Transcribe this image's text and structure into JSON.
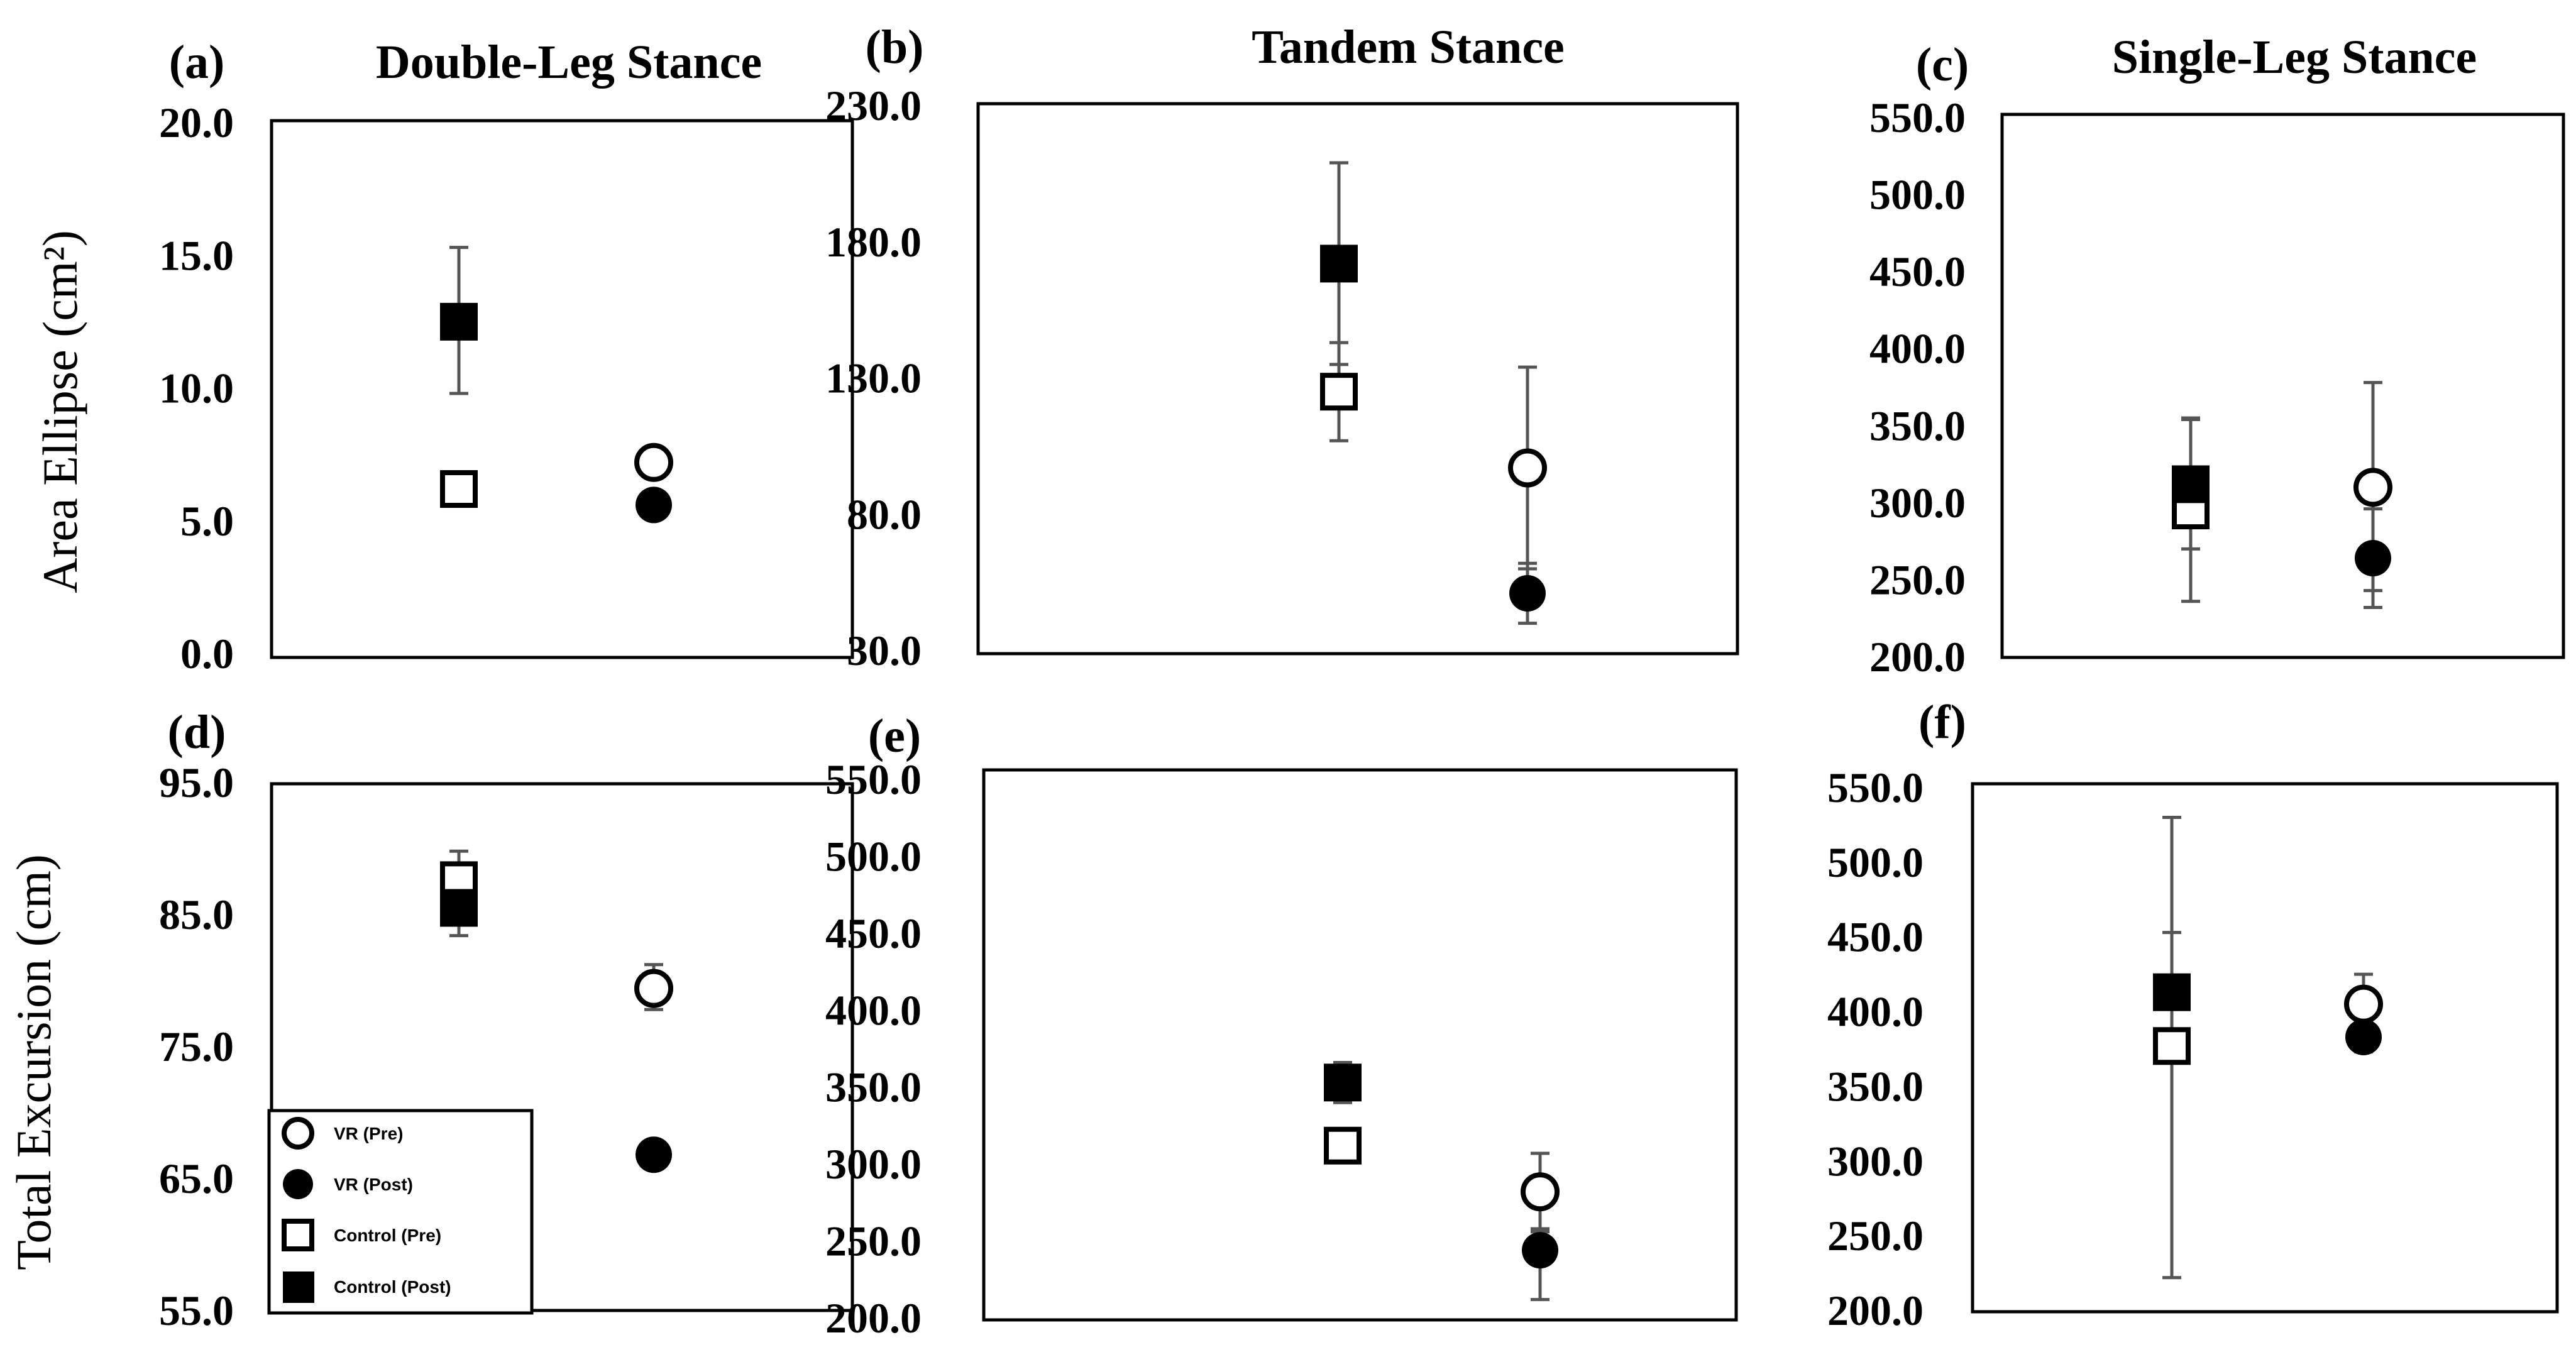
{
  "figure": {
    "ylabel_top": "Area Ellipse (cm²)",
    "ylabel_bottom": "Total Excursion (cm)"
  },
  "legend": {
    "items": [
      {
        "key": "vr_pre",
        "label": "VR (Pre)"
      },
      {
        "key": "vr_post",
        "label": "VR (Post)"
      },
      {
        "key": "control_pre",
        "label": "Control (Pre)"
      },
      {
        "key": "control_post",
        "label": "Control (Post)"
      }
    ]
  },
  "chart_data": [
    {
      "panel": "(a)",
      "title": "Double-Leg Stance",
      "type": "scatter",
      "ylabel": "Area Ellipse (cm²)",
      "ylim": [
        0,
        20
      ],
      "yticks": [
        "0.0",
        "5.0",
        "10.0",
        "15.0",
        "20.0"
      ],
      "groups": [
        "Control",
        "VR"
      ],
      "series": [
        {
          "key": "control_pre",
          "name": "Control (Pre)",
          "group": "Control",
          "y": 6.2,
          "err_low": 5.6,
          "err_high": 6.6
        },
        {
          "key": "control_post",
          "name": "Control (Post)",
          "group": "Control",
          "y": 12.5,
          "err_low": 9.8,
          "err_high": 15.3
        },
        {
          "key": "vr_pre",
          "name": "VR (Pre)",
          "group": "VR",
          "y": 7.2,
          "err_low": 6.8,
          "err_high": 7.6
        },
        {
          "key": "vr_post",
          "name": "VR (Post)",
          "group": "VR",
          "y": 5.6,
          "err_low": 5.3,
          "err_high": 5.9
        }
      ]
    },
    {
      "panel": "(b)",
      "title": "Tandem Stance",
      "type": "scatter",
      "ylabel": "",
      "ylim": [
        30,
        230
      ],
      "yticks": [
        "30.0",
        "80.0",
        "130.0",
        "180.0",
        "230.0"
      ],
      "groups": [
        "Control",
        "VR"
      ],
      "series": [
        {
          "key": "control_pre",
          "name": "Control (Pre)",
          "group": "Control",
          "y": 125,
          "err_low": 107,
          "err_high": 143
        },
        {
          "key": "control_post",
          "name": "Control (Post)",
          "group": "Control",
          "y": 172,
          "err_low": 135,
          "err_high": 209
        },
        {
          "key": "vr_pre",
          "name": "VR (Pre)",
          "group": "VR",
          "y": 97,
          "err_low": 60,
          "err_high": 134
        },
        {
          "key": "vr_post",
          "name": "VR (Post)",
          "group": "VR",
          "y": 51,
          "err_low": 40,
          "err_high": 62
        }
      ]
    },
    {
      "panel": "(c)",
      "title": "Single-Leg Stance",
      "type": "scatter",
      "ylabel": "",
      "ylim": [
        200,
        550
      ],
      "yticks": [
        "200.0",
        "250.0",
        "300.0",
        "350.0",
        "400.0",
        "450.0",
        "500.0",
        "550.0"
      ],
      "groups": [
        "Control",
        "VR"
      ],
      "series": [
        {
          "key": "control_pre",
          "name": "Control (Pre)",
          "group": "Control",
          "y": 295,
          "err_low": 236,
          "err_high": 354
        },
        {
          "key": "control_post",
          "name": "Control (Post)",
          "group": "Control",
          "y": 312,
          "err_low": 270,
          "err_high": 355
        },
        {
          "key": "vr_pre",
          "name": "VR (Pre)",
          "group": "VR",
          "y": 310,
          "err_low": 243,
          "err_high": 378
        },
        {
          "key": "vr_post",
          "name": "VR (Post)",
          "group": "VR",
          "y": 264,
          "err_low": 232,
          "err_high": 296
        }
      ]
    },
    {
      "panel": "(d)",
      "title": "",
      "type": "scatter",
      "ylabel": "Total Excursion (cm)",
      "ylim": [
        55,
        95
      ],
      "yticks": [
        "55.0",
        "65.0",
        "75.0",
        "85.0",
        "95.0"
      ],
      "groups": [
        "Control",
        "VR"
      ],
      "series": [
        {
          "key": "control_pre",
          "name": "Control (Pre)",
          "group": "Control",
          "y": 87.6,
          "err_low": 85.5,
          "err_high": 89.8
        },
        {
          "key": "control_post",
          "name": "Control (Post)",
          "group": "Control",
          "y": 85.5,
          "err_low": 83.4,
          "err_high": 87.6
        },
        {
          "key": "vr_pre",
          "name": "VR (Pre)",
          "group": "VR",
          "y": 79.4,
          "err_low": 77.8,
          "err_high": 81.2
        },
        {
          "key": "vr_post",
          "name": "VR (Post)",
          "group": "VR",
          "y": 66.8,
          "err_low": 66.3,
          "err_high": 67.3
        }
      ]
    },
    {
      "panel": "(e)",
      "title": "",
      "type": "scatter",
      "ylabel": "",
      "ylim": [
        200,
        550
      ],
      "yticks": [
        "200.0",
        "250.0",
        "300.0",
        "350.0",
        "400.0",
        "450.0",
        "500.0",
        "550.0"
      ],
      "groups": [
        "Control",
        "VR"
      ],
      "series": [
        {
          "key": "control_pre",
          "name": "Control (Pre)",
          "group": "Control",
          "y": 312,
          "err_low": 302,
          "err_high": 322
        },
        {
          "key": "control_post",
          "name": "Control (Post)",
          "group": "Control",
          "y": 353,
          "err_low": 340,
          "err_high": 366
        },
        {
          "key": "vr_pre",
          "name": "VR (Pre)",
          "group": "VR",
          "y": 282,
          "err_low": 258,
          "err_high": 307
        },
        {
          "key": "vr_post",
          "name": "VR (Post)",
          "group": "VR",
          "y": 244,
          "err_low": 212,
          "err_high": 256
        }
      ]
    },
    {
      "panel": "(f)",
      "title": "",
      "type": "scatter",
      "ylabel": "",
      "ylim": [
        200,
        550
      ],
      "yticks": [
        "200.0",
        "250.0",
        "300.0",
        "350.0",
        "400.0",
        "450.0",
        "500.0",
        "550.0"
      ],
      "groups": [
        "Control",
        "VR"
      ],
      "series": [
        {
          "key": "control_pre",
          "name": "Control (Pre)",
          "group": "Control",
          "y": 377,
          "err_low": 222,
          "err_high": 530
        },
        {
          "key": "control_post",
          "name": "Control (Post)",
          "group": "Control",
          "y": 413,
          "err_low": 373,
          "err_high": 453
        },
        {
          "key": "vr_pre",
          "name": "VR (Pre)",
          "group": "VR",
          "y": 405,
          "err_low": 386,
          "err_high": 425
        },
        {
          "key": "vr_post",
          "name": "VR (Post)",
          "group": "VR",
          "y": 383,
          "err_low": 373,
          "err_high": 395
        }
      ]
    }
  ]
}
